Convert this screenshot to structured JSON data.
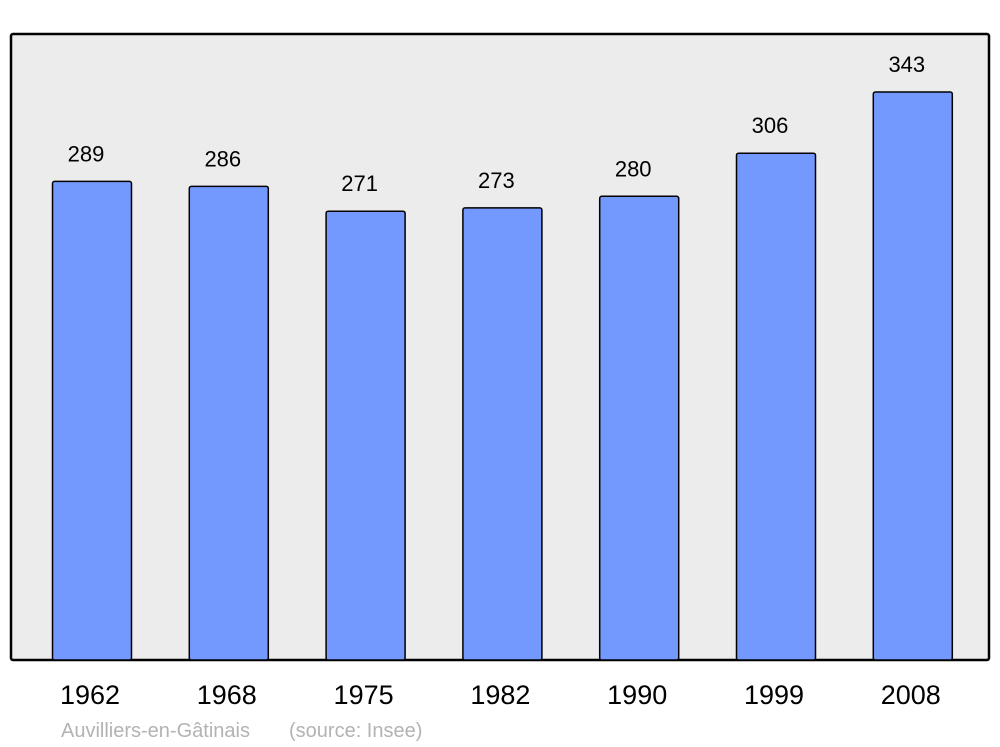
{
  "chart_data": {
    "type": "bar",
    "categories": [
      "1962",
      "1968",
      "1975",
      "1982",
      "1990",
      "1999",
      "2008"
    ],
    "values": [
      289,
      286,
      271,
      273,
      280,
      306,
      343
    ],
    "title": "",
    "xlabel": "",
    "ylabel": "",
    "ylim": [
      0,
      378
    ],
    "grid": false,
    "data_labels": true,
    "colors": {
      "bar": "#7399ff",
      "background": "#ececec",
      "frame": "#000000",
      "footer": "#b3b3b3"
    }
  },
  "footer": {
    "place": "Auvilliers-en-Gâtinais",
    "source": "(source: Insee)"
  }
}
